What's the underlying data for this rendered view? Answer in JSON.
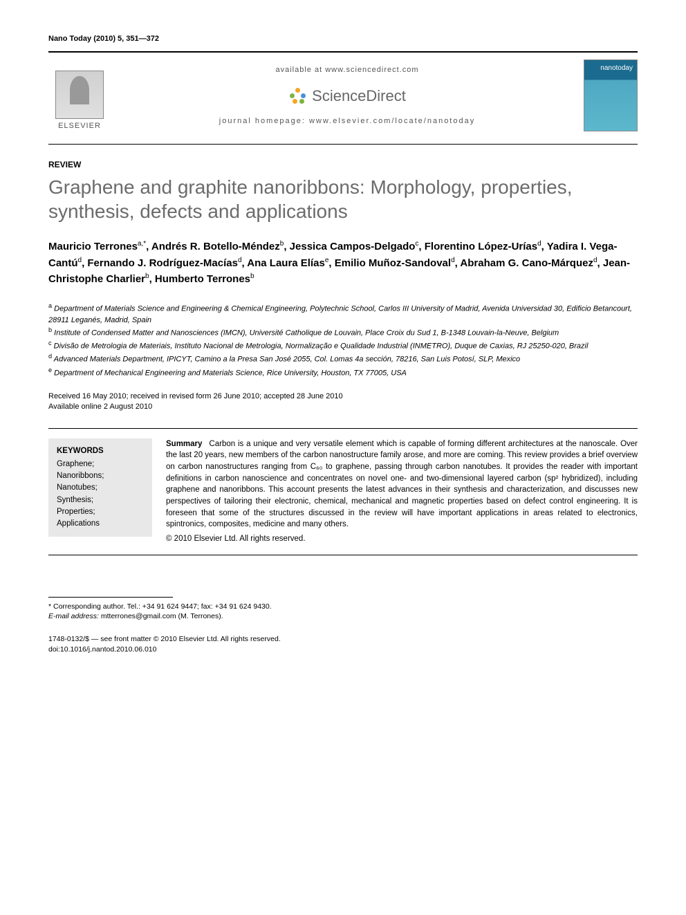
{
  "journal_citation": "Nano Today (2010) 5, 351—372",
  "header": {
    "available_at": "available at www.sciencedirect.com",
    "sciencedirect": "ScienceDirect",
    "homepage": "journal homepage: www.elsevier.com/locate/nanotoday",
    "elsevier_label": "ELSEVIER",
    "cover_label": "nanotoday",
    "sd_dot_colors": [
      "#f5a623",
      "#7cb342",
      "#4a90d9",
      "#f5a623",
      "#7cb342"
    ]
  },
  "article_type": "REVIEW",
  "title": "Graphene and graphite nanoribbons: Morphology, properties, synthesis, defects and applications",
  "authors_html": "Mauricio Terrones<sup>a,*</sup>, Andrés R. Botello-Méndez<sup>b</sup>, Jessica Campos-Delgado<sup>c</sup>, Florentino López-Urías<sup>d</sup>, Yadira I. Vega-Cantú<sup>d</sup>, Fernando J. Rodríguez-Macías<sup>d</sup>, Ana Laura Elías<sup>e</sup>, Emilio Muñoz-Sandoval<sup>d</sup>, Abraham G. Cano-Márquez<sup>d</sup>, Jean-Christophe Charlier<sup>b</sup>, Humberto Terrones<sup>b</sup>",
  "affiliations": [
    {
      "sup": "a",
      "text": "Department of Materials Science and Engineering & Chemical Engineering, Polytechnic School, Carlos III University of Madrid, Avenida Universidad 30, Edificio Betancourt, 28911 Leganés, Madrid, Spain"
    },
    {
      "sup": "b",
      "text": "Institute of Condensed Matter and Nanosciences (IMCN), Université Catholique de Louvain, Place Croix du Sud 1, B-1348 Louvain-la-Neuve, Belgium"
    },
    {
      "sup": "c",
      "text": "Divisão de Metrologia de Materiais, Instituto Nacional de Metrologia, Normalização e Qualidade Industrial (INMETRO), Duque de Caxias, RJ 25250-020, Brazil"
    },
    {
      "sup": "d",
      "text": "Advanced Materials Department, IPICYT, Camino a la Presa San José 2055, Col. Lomas 4a sección, 78216, San Luis Potosí, SLP, Mexico"
    },
    {
      "sup": "e",
      "text": "Department of Mechanical Engineering and Materials Science, Rice University, Houston, TX 77005, USA"
    }
  ],
  "dates": {
    "received": "Received 16 May 2010; received in revised form 26 June 2010; accepted 28 June 2010",
    "online": "Available online 2 August 2010"
  },
  "keywords": {
    "heading": "KEYWORDS",
    "items": [
      "Graphene;",
      "Nanoribbons;",
      "Nanotubes;",
      "Synthesis;",
      "Properties;",
      "Applications"
    ]
  },
  "summary": {
    "heading": "Summary",
    "body": "Carbon is a unique and very versatile element which is capable of forming different architectures at the nanoscale. Over the last 20 years, new members of the carbon nanostructure family arose, and more are coming. This review provides a brief overview on carbon nanostructures ranging from C₆₀ to graphene, passing through carbon nanotubes. It provides the reader with important definitions in carbon nanoscience and concentrates on novel one- and two-dimensional layered carbon (sp² hybridized), including graphene and nanoribbons. This account presents the latest advances in their synthesis and characterization, and discusses new perspectives of tailoring their electronic, chemical, mechanical and magnetic properties based on defect control engineering. It is foreseen that some of the structures discussed in the review will have important applications in areas related to electronics, spintronics, composites, medicine and many others.",
    "copyright": "© 2010 Elsevier Ltd. All rights reserved."
  },
  "corresponding": {
    "line1": "* Corresponding author. Tel.: +34 91 624 9447; fax: +34 91 624 9430.",
    "email_label": "E-mail address:",
    "email": "mtterrones@gmail.com",
    "email_suffix": "(M. Terrones)."
  },
  "footer": {
    "front_matter": "1748-0132/$ — see front matter © 2010 Elsevier Ltd. All rights reserved.",
    "doi": "doi:10.1016/j.nantod.2010.06.010"
  },
  "colors": {
    "title_gray": "#6b6b6b",
    "keywords_bg": "#e8e8e8",
    "text": "#000000"
  },
  "typography": {
    "title_fontsize_pt": 21,
    "body_fontsize_pt": 9,
    "authors_fontsize_pt": 11
  }
}
